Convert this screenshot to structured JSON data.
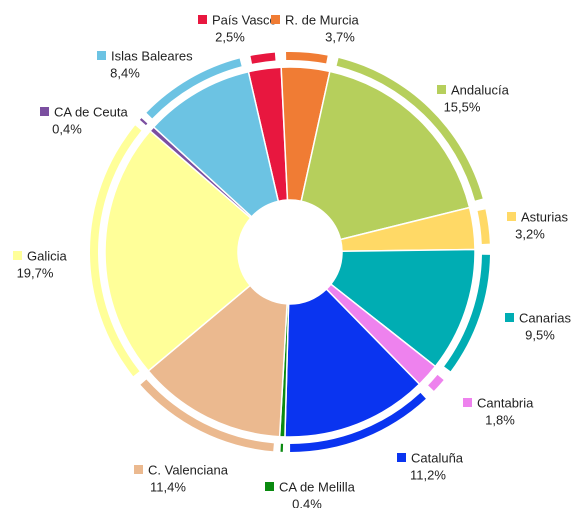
{
  "chart_data": {
    "type": "pie",
    "categories": [
      "País Vasco",
      "R. de Murcia",
      "Andalucía",
      "Asturias",
      "Canarias",
      "Cantabria",
      "Cataluña",
      "CA de Melilla",
      "C. Valenciana",
      "Galicia",
      "CA de Ceuta",
      "Islas Baleares"
    ],
    "values": [
      2.5,
      3.7,
      15.5,
      3.2,
      9.5,
      1.8,
      11.2,
      0.4,
      11.4,
      19.7,
      0.4,
      8.4
    ],
    "value_labels": [
      "2,5%",
      "3,7%",
      "15,5%",
      "3,2%",
      "9,5%",
      "1,8%",
      "11,2%",
      "0,4%",
      "11,4%",
      "19,7%",
      "0,4%",
      "8,4%"
    ],
    "colors": [
      "#e8173f",
      "#f07c34",
      "#b6cf5c",
      "#ffd966",
      "#00adb3",
      "#ee82ee",
      "#0a34f0",
      "#0a8a10",
      "#ebb98f",
      "#ffff99",
      "#7b4fa0",
      "#6cc3e3"
    ]
  }
}
